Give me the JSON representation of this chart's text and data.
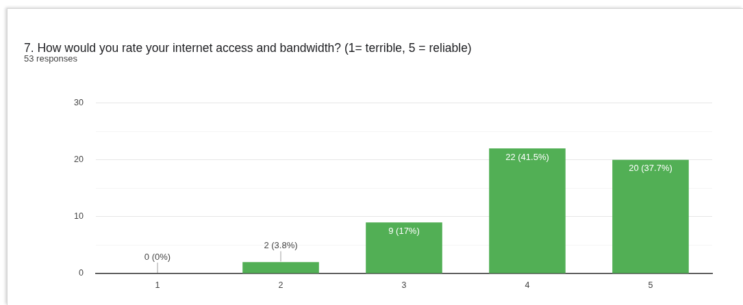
{
  "chart_data": {
    "type": "bar",
    "title": "7. How would you rate your internet access and bandwidth? (1= terrible, 5 = reliable)",
    "subtitle": "53 responses",
    "categories": [
      "1",
      "2",
      "3",
      "4",
      "5"
    ],
    "values": [
      0,
      2,
      9,
      22,
      20
    ],
    "color": "#52af55",
    "value_labels": [
      "0 (0%)",
      "2 (3.8%)",
      "9 (17%)",
      "22 (41.5%)",
      "20 (37.7%)"
    ],
    "ylim": [
      0,
      30
    ],
    "yticks": [
      0,
      {
        "value": 5,
        "label": null
      },
      10,
      {
        "value": 15,
        "label": null
      },
      20,
      {
        "value": 25,
        "label": null
      },
      30
    ],
    "grid": "y"
  }
}
